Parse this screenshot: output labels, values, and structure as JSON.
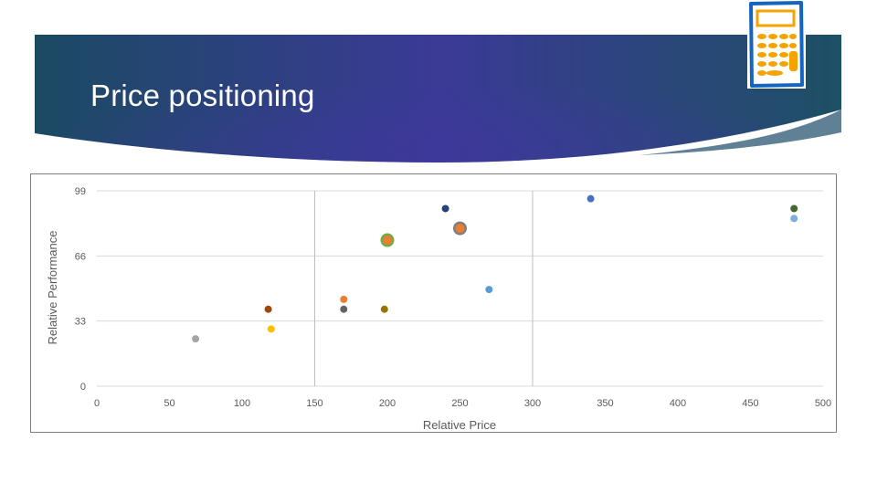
{
  "slide": {
    "title": "Price positioning",
    "banner_colors": {
      "left": "#1b4a63",
      "center": "#3b3a96",
      "right": "#1e5065",
      "edge": "#4f738a"
    },
    "logo_icon": "calculator-icon"
  },
  "chart_data": {
    "type": "scatter",
    "title": "",
    "xlabel": "Relative Price",
    "ylabel": "Relative Performance",
    "xlim": [
      0,
      500
    ],
    "ylim": [
      0,
      99
    ],
    "xticks": [
      "0",
      "50",
      "100",
      "150",
      "200",
      "250",
      "300",
      "350",
      "400",
      "450",
      "500"
    ],
    "yticks": [
      "0",
      "33",
      "66",
      "99"
    ],
    "reference_lines": {
      "x": [
        150,
        300
      ]
    },
    "grid": "horizontal",
    "legend": "none",
    "points": [
      {
        "x": 68,
        "y": 24,
        "color": "#a5a5a5"
      },
      {
        "x": 118,
        "y": 39,
        "color": "#9e480e"
      },
      {
        "x": 120,
        "y": 29,
        "color": "#ffc000"
      },
      {
        "x": 170,
        "y": 44,
        "color": "#ed7d31"
      },
      {
        "x": 170,
        "y": 39,
        "color": "#636363"
      },
      {
        "x": 198,
        "y": 39,
        "color": "#997300"
      },
      {
        "x": 200,
        "y": 74,
        "color": "#ed7d31",
        "outline": "#70ad47"
      },
      {
        "x": 240,
        "y": 90,
        "color": "#264478"
      },
      {
        "x": 250,
        "y": 80,
        "color": "#ed7d31",
        "outline": "#7f7f7f"
      },
      {
        "x": 270,
        "y": 49,
        "color": "#5b9bd5"
      },
      {
        "x": 340,
        "y": 95,
        "color": "#4472c4"
      },
      {
        "x": 480,
        "y": 90,
        "color": "#43682b"
      },
      {
        "x": 480,
        "y": 85,
        "color": "#7cafdd"
      }
    ]
  }
}
